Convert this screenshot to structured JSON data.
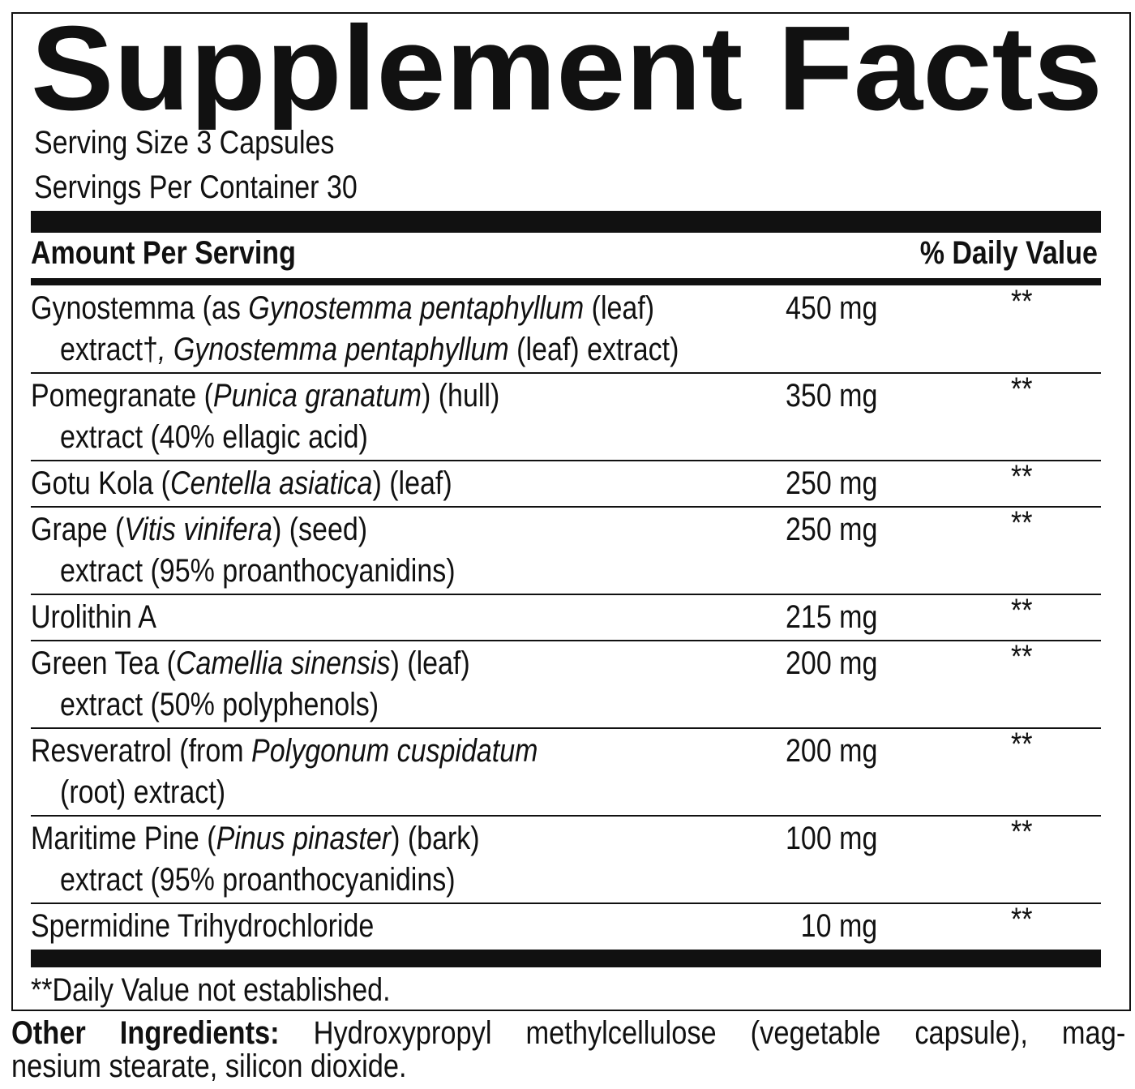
{
  "header": {
    "title": "Supplement Facts",
    "serving_size": "Serving Size 3 Capsules",
    "servings_per_container": "Servings Per Container 30"
  },
  "table": {
    "columns": [
      "Amount Per Serving",
      "% Daily Value"
    ],
    "rows": [
      {
        "lines": [
          [
            "Gynostemma (as ",
            "Gynostemma pentaphyllum",
            " (leaf)"
          ],
          [
            "extract†",
            ", Gynostemma pentaphyllum",
            " (leaf) extract)"
          ]
        ],
        "amount": "450 mg",
        "daily_value": "**"
      },
      {
        "lines": [
          [
            "Pomegranate (",
            "Punica granatum",
            ") (hull)"
          ],
          [
            "extract (40% ellagic acid)"
          ]
        ],
        "amount": "350 mg",
        "daily_value": "**"
      },
      {
        "lines": [
          [
            "Gotu Kola (",
            "Centella asiatica",
            ") (leaf)"
          ]
        ],
        "amount": "250 mg",
        "daily_value": "**"
      },
      {
        "lines": [
          [
            "Grape (",
            "Vitis vinifera",
            ") (seed)"
          ],
          [
            "extract (95% proanthocyanidins)"
          ]
        ],
        "amount": "250 mg",
        "daily_value": "**"
      },
      {
        "lines": [
          [
            "Urolithin A"
          ]
        ],
        "amount": "215 mg",
        "daily_value": "**"
      },
      {
        "lines": [
          [
            "Green Tea (",
            "Camellia sinensis",
            ") (leaf)"
          ],
          [
            "extract (50% polyphenols)"
          ]
        ],
        "amount": "200 mg",
        "daily_value": "**"
      },
      {
        "lines": [
          [
            "Resveratrol (from ",
            "Polygonum cuspidatum"
          ],
          [
            "(root) extract)"
          ]
        ],
        "amount": "200 mg",
        "daily_value": "**"
      },
      {
        "lines": [
          [
            "Maritime Pine (",
            "Pinus pinaster",
            ") (bark)"
          ],
          [
            "extract (95% proanthocyanidins)"
          ]
        ],
        "amount": "100 mg",
        "daily_value": "**"
      },
      {
        "lines": [
          [
            "Spermidine Trihydrochloride"
          ]
        ],
        "amount": "10 mg",
        "daily_value": "**"
      }
    ]
  },
  "footnote": "**Daily Value not established.",
  "other_ingredients": {
    "label": "Other Ingredients:",
    "lines": [
      " Hydroxypropyl methylcellulose (vegetable capsule), mag-",
      "nesium stearate, silicon dioxide."
    ]
  }
}
